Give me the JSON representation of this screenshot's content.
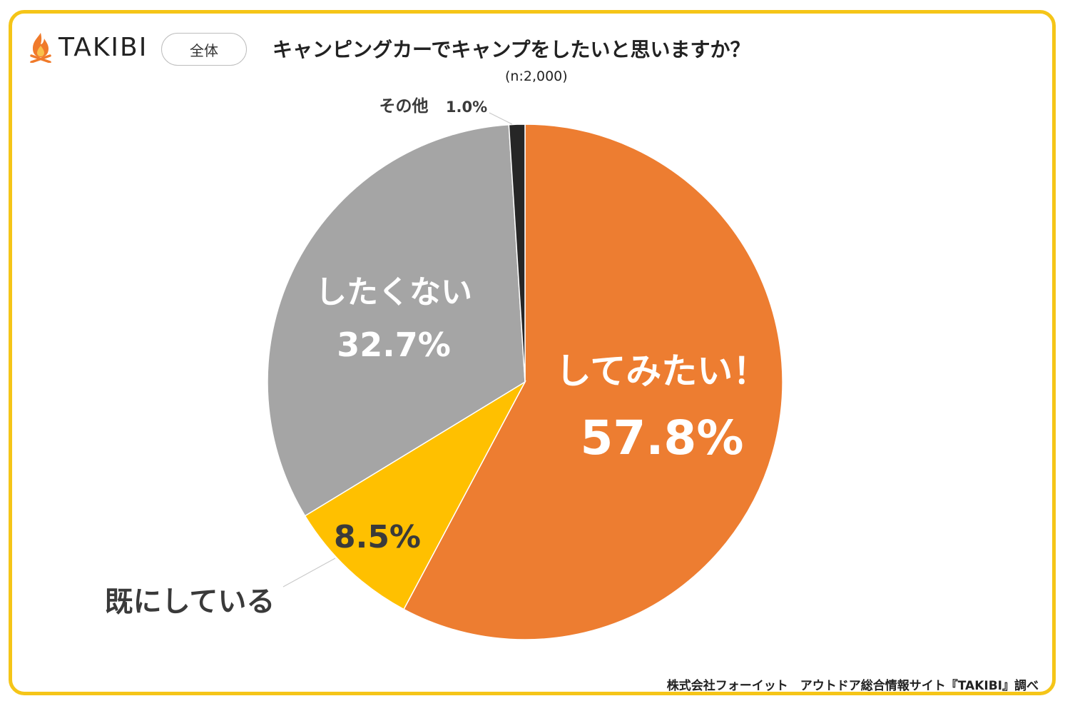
{
  "brand": {
    "name": "TAKIBI"
  },
  "segment_tag": "全体",
  "chart_data": {
    "type": "pie",
    "title": "キャンピングカーでキャンプをしたいと思いますか？",
    "subtitle": "(n:2,000)",
    "slices": [
      {
        "label": "してみたい！",
        "value": 57.8,
        "value_label": "57.8%",
        "color": "#ED7D31"
      },
      {
        "label": "既にしている",
        "value": 8.5,
        "value_label": "8.5%",
        "color": "#FFC000"
      },
      {
        "label": "したくない",
        "value": 32.7,
        "value_label": "32.7%",
        "color": "#A5A5A5"
      },
      {
        "label": "その他",
        "value": 1.0,
        "value_label": "1.0%",
        "color": "#262626"
      }
    ]
  },
  "footer": "株式会社フォーイット　アウトドア総合情報サイト『TAKIBI』調べ"
}
